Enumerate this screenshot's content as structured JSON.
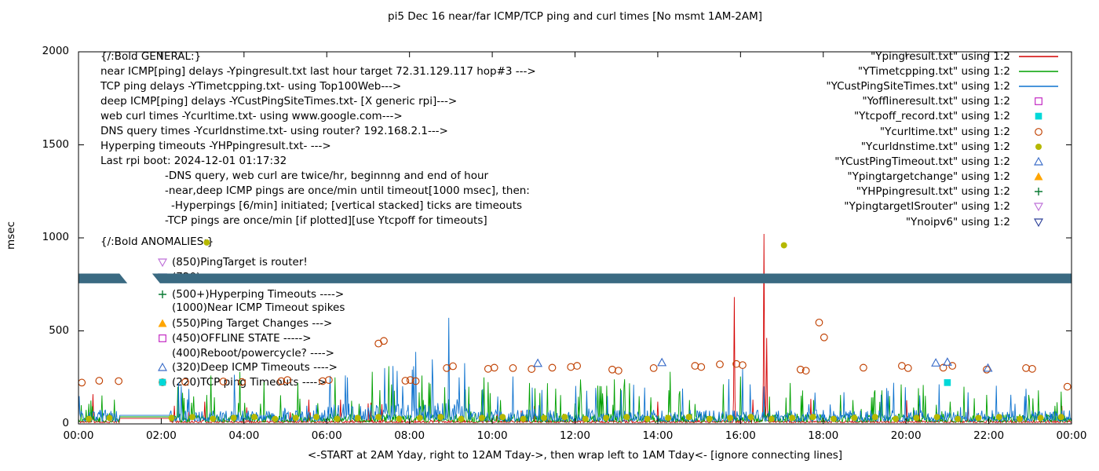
{
  "title": "pi5 Dec 16  near/far ICMP/TCP ping and curl times [No msmt 1AM-2AM]",
  "ylabel": "msec",
  "xlabel": "<-START at 2AM Yday, right to 12AM Tday->, then wrap left to 1AM Tday<- [ignore connecting lines]",
  "chart_data": {
    "type": "line",
    "x_unit": "hours",
    "xlim": [
      0,
      24
    ],
    "ylim": [
      0,
      2000
    ],
    "yticks": [
      0,
      500,
      1000,
      1500,
      2000
    ],
    "xtick_labels": [
      "00:00",
      "02:00",
      "04:00",
      "06:00",
      "08:00",
      "10:00",
      "12:00",
      "14:00",
      "16:00",
      "18:00",
      "20:00",
      "22:00",
      "00:00"
    ],
    "grid": false,
    "legend_position": "top-right",
    "legend": [
      {
        "label": "\"Ypingresult.txt\" using 1:2",
        "sample": "line",
        "color": "#d40000"
      },
      {
        "label": "\"YTimetcpping.txt\" using 1:2",
        "sample": "line",
        "color": "#00a000"
      },
      {
        "label": "\"YCustPingSiteTimes.txt\" using 1:2",
        "sample": "line",
        "color": "#0d72cf"
      },
      {
        "label": "\"Yofflineresult.txt\" using 1:2",
        "sample": "square-open",
        "color": "#c020c0"
      },
      {
        "label": "\"Ytcpoff_record.txt\" using 1:2",
        "sample": "square-filled",
        "color": "#00d8d8"
      },
      {
        "label": "\"Ycurltime.txt\" using 1:2",
        "sample": "circle-open",
        "color": "#c04000"
      },
      {
        "label": "\"Ycurldnstime.txt\" using 1:2",
        "sample": "circle-filled",
        "color": "#b5b800"
      },
      {
        "label": "\"YCustPingTimeout.txt\" using 1:2",
        "sample": "triangle-up-open",
        "color": "#3a6cc8"
      },
      {
        "label": "\"Ypingtargetchange\" using 1:2",
        "sample": "triangle-up-filled",
        "color": "#ffa500"
      },
      {
        "label": "\"YHPpingresult.txt\" using 1:2",
        "sample": "plus",
        "color": "#0a7a33"
      },
      {
        "label": "\"YpingtargetISrouter\" using 1:2",
        "sample": "triangle-down-open",
        "color": "#bd6fd8"
      },
      {
        "label": "\"Ynoipv6\" using 1:2",
        "sample": "triangle-down-open",
        "color": "#2b3f98"
      }
    ],
    "line_series": [
      {
        "name": "Ypingresult.txt",
        "color": "#d40000",
        "seed": 11,
        "base": [
          7,
          20
        ],
        "burst_p": 0.008,
        "burst": [
          40,
          140
        ],
        "flat": [
          1.0,
          2.2,
          30
        ],
        "spikes": [
          [
            0.35,
            160
          ],
          [
            3.05,
            120
          ],
          [
            7.0,
            110
          ],
          [
            14.0,
            120
          ],
          [
            15.85,
            682
          ],
          [
            16.3,
            130
          ],
          [
            16.57,
            1021
          ],
          [
            16.63,
            462
          ],
          [
            21.5,
            100
          ]
        ]
      },
      {
        "name": "YTimetcpping.txt",
        "color": "#00a000",
        "seed": 22,
        "base": [
          10,
          55
        ],
        "burst_p": 0.06,
        "burst": [
          50,
          200
        ],
        "flat": [
          1.0,
          2.2,
          38
        ],
        "spikes": [
          [
            2.4,
            200
          ],
          [
            3.2,
            260
          ],
          [
            3.9,
            280
          ],
          [
            5.3,
            220
          ],
          [
            6.2,
            250
          ],
          [
            7.1,
            280
          ],
          [
            7.5,
            310
          ],
          [
            8.3,
            260
          ],
          [
            9.8,
            250
          ],
          [
            10.9,
            220
          ],
          [
            13.2,
            240
          ],
          [
            14.3,
            280
          ],
          [
            16.0,
            255
          ],
          [
            17.2,
            220
          ],
          [
            19.6,
            150
          ],
          [
            21.4,
            200
          ],
          [
            23.2,
            180
          ]
        ]
      },
      {
        "name": "YCustPingSiteTimes.txt",
        "color": "#0d72cf",
        "seed": 33,
        "base": [
          14,
          75
        ],
        "burst_p": 0.045,
        "burst": [
          40,
          200
        ],
        "flat": [
          1.0,
          2.2,
          46
        ],
        "boost": [
          6.0,
          9.5,
          1.5
        ],
        "spikes": [
          [
            6.5,
            250
          ],
          [
            7.4,
            300
          ],
          [
            7.7,
            285
          ],
          [
            8.1,
            310
          ],
          [
            8.95,
            570
          ],
          [
            9.2,
            250
          ],
          [
            10.5,
            255
          ],
          [
            14.6,
            190
          ],
          [
            16.05,
            300
          ],
          [
            18.5,
            170
          ],
          [
            21.5,
            170
          ]
        ]
      }
    ],
    "point_series": [
      {
        "name": "Ycurltime.txt",
        "marker": "circle-open",
        "color": "#c04000",
        "data": [
          [
            0.08,
            222
          ],
          [
            0.5,
            232
          ],
          [
            0.97,
            230
          ],
          [
            2.58,
            225
          ],
          [
            3.5,
            228
          ],
          [
            3.95,
            225
          ],
          [
            4.9,
            230
          ],
          [
            5.05,
            236
          ],
          [
            5.9,
            230
          ],
          [
            6.05,
            236
          ],
          [
            7.25,
            432
          ],
          [
            7.38,
            446
          ],
          [
            7.9,
            232
          ],
          [
            8.02,
            236
          ],
          [
            8.15,
            230
          ],
          [
            8.9,
            300
          ],
          [
            9.05,
            310
          ],
          [
            9.9,
            296
          ],
          [
            10.05,
            302
          ],
          [
            10.5,
            300
          ],
          [
            10.95,
            295
          ],
          [
            11.45,
            302
          ],
          [
            11.9,
            306
          ],
          [
            12.05,
            312
          ],
          [
            12.9,
            292
          ],
          [
            13.05,
            286
          ],
          [
            13.9,
            300
          ],
          [
            14.9,
            312
          ],
          [
            15.05,
            306
          ],
          [
            15.5,
            320
          ],
          [
            15.9,
            322
          ],
          [
            16.05,
            316
          ],
          [
            17.45,
            292
          ],
          [
            17.58,
            286
          ],
          [
            17.9,
            545
          ],
          [
            18.02,
            465
          ],
          [
            18.97,
            302
          ],
          [
            19.9,
            312
          ],
          [
            20.05,
            300
          ],
          [
            20.9,
            302
          ],
          [
            21.12,
            312
          ],
          [
            21.95,
            292
          ],
          [
            22.9,
            300
          ],
          [
            23.05,
            296
          ],
          [
            23.9,
            200
          ]
        ]
      },
      {
        "name": "Ycurldnstime.txt",
        "marker": "circle-filled",
        "color": "#b5b800",
        "data": [
          [
            3.1,
            975
          ],
          [
            17.05,
            960
          ]
        ],
        "baseline_dots": {
          "start": 0.25,
          "end": 23.75,
          "step": 0.5,
          "value": 27,
          "skip": [
            1.0,
            2.0
          ]
        }
      },
      {
        "name": "YCustPingTimeout.txt",
        "marker": "triangle-up-open",
        "color": "#3a6cc8",
        "data": [
          [
            11.1,
            326
          ],
          [
            14.1,
            330
          ],
          [
            20.72,
            328
          ],
          [
            21.0,
            332
          ],
          [
            21.98,
            300
          ]
        ]
      },
      {
        "name": "Ytcpoff_record.txt",
        "marker": "square-filled",
        "color": "#00d8d8",
        "data": [
          [
            21.0,
            222
          ]
        ]
      }
    ],
    "band": {
      "color": "#3a6a82",
      "y_range": [
        756,
        808
      ],
      "gap_top": [
        0.99,
        1.78
      ],
      "gap_bottom": [
        1.18,
        1.97
      ]
    },
    "annotations": {
      "general": [
        {
          "text": "{/:Bold GENERAL:}",
          "x": 128,
          "y": 64
        },
        {
          "text": "near ICMP[ping] delays -Ypingresult.txt last hour target 72.31.129.117 hop#3 --->",
          "x": 128,
          "y": 83
        },
        {
          "text": "TCP ping delays -YTimetcpping.txt- using Top100Web--->",
          "x": 128,
          "y": 102
        },
        {
          "text": "deep ICMP[ping] delays -YCustPingSiteTimes.txt- [X generic rpi]--->",
          "x": 128,
          "y": 121
        },
        {
          "text": "web curl times -Ycurltime.txt- using www.google.com--->",
          "x": 128,
          "y": 140
        },
        {
          "text": "DNS query times -Ycurldnstime.txt- using router? 192.168.2.1--->",
          "x": 128,
          "y": 159
        },
        {
          "text": "Hyperping timeouts -YHPpingresult.txt- --->",
          "x": 128,
          "y": 178
        },
        {
          "text": "Last rpi boot: 2024-12-01 01:17:32",
          "x": 128,
          "y": 197
        },
        {
          "text": "-DNS query, web curl are twice/hr, beginnng and end of hour",
          "x": 210,
          "y": 216
        },
        {
          "text": "-near,deep ICMP pings are once/min until timeout[1000 msec], then:",
          "x": 210,
          "y": 235
        },
        {
          "text": "-Hyperpings [6/min] initiated; [vertical stacked] ticks are timeouts",
          "x": 218,
          "y": 254
        },
        {
          "text": "-TCP pings are once/min [if plotted][use Ytcpoff for timeouts]",
          "x": 210,
          "y": 273
        }
      ],
      "anomalies_header": {
        "text": "{/:Bold ANOMALIES:}",
        "x": 128,
        "y": 300
      },
      "anomalies": [
        {
          "marker": "triangle-down-open",
          "color": "#bd6fd8",
          "text": "(850)PingTarget is router!",
          "x": 200,
          "y": 326
        },
        {
          "marker": "triangle-down-open",
          "color": "#2b3f98",
          "text": "(720)",
          "x": 200,
          "y": 345
        },
        {
          "marker": "plus",
          "color": "#0a7a33",
          "text": "(500+)Hyperping Timeouts ---->",
          "x": 200,
          "y": 367
        },
        {
          "marker": null,
          "color": null,
          "text": "(1000)Near ICMP Timeout spikes",
          "x": 200,
          "y": 384
        },
        {
          "marker": "triangle-up-filled",
          "color": "#ffa500",
          "text": "(550)Ping Target Changes --->",
          "x": 200,
          "y": 404
        },
        {
          "marker": "square-open",
          "color": "#c020c0",
          "text": "(450)OFFLINE STATE ----->",
          "x": 200,
          "y": 423
        },
        {
          "marker": null,
          "color": null,
          "text": "(400)Reboot/powercycle? ---->",
          "x": 200,
          "y": 442
        },
        {
          "marker": "triangle-up-open",
          "color": "#3a6cc8",
          "text": "(320)Deep ICMP Timeouts ---->",
          "x": 200,
          "y": 460
        },
        {
          "marker": "square-filled",
          "color": "#00d8d8",
          "extra_marker": "circle-open",
          "extra_color": "#c04000",
          "text": "(220)TCP ping Timeouts ---->",
          "x": 200,
          "y": 479
        }
      ]
    }
  }
}
